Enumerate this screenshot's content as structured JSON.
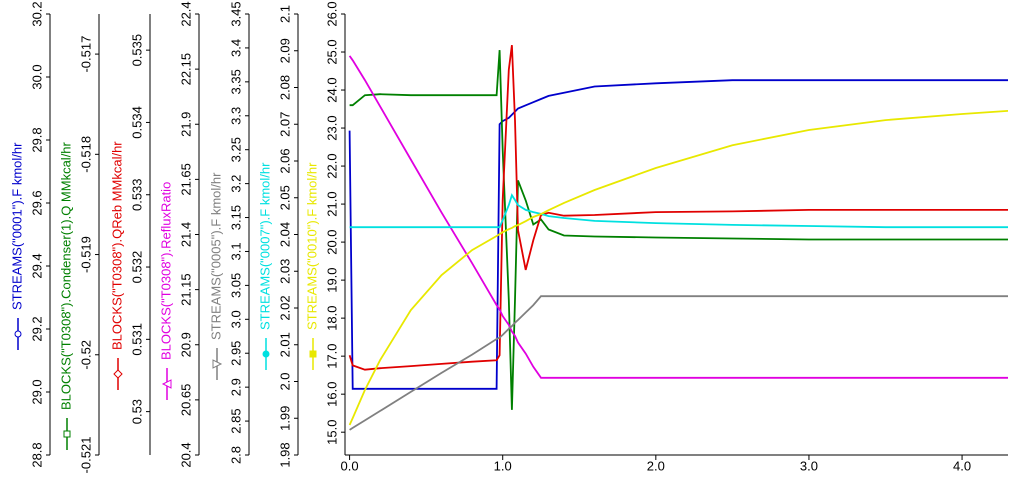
{
  "chart_data": {
    "type": "line",
    "x": [
      0,
      0.02,
      0.1,
      0.2,
      0.4,
      0.6,
      0.8,
      0.96,
      0.98,
      1.0,
      1.04,
      1.06,
      1.08,
      1.1,
      1.15,
      1.2,
      1.25,
      1.3,
      1.4,
      1.6,
      2.0,
      2.5,
      3.0,
      3.5,
      4.0,
      4.3
    ],
    "xlim": [
      -0.03,
      4.3
    ],
    "xticks": [
      {
        "value": 0,
        "label": "0.0"
      },
      {
        "value": 1,
        "label": "1.0"
      },
      {
        "value": 2,
        "label": "2.0"
      },
      {
        "value": 3,
        "label": "3.0"
      },
      {
        "value": 4,
        "label": "4.0"
      }
    ],
    "series": [
      {
        "name": "STREAMS(\"0001\").F kmol/hr",
        "color": "#0000cc",
        "marker": "circle-open",
        "ylim": [
          28.8,
          30.2
        ],
        "yticks": [
          28.8,
          {
            "value": 29,
            "label": "29.0"
          },
          29.2,
          29.4,
          29.6,
          29.8,
          {
            "value": 30,
            "label": "30.0"
          },
          30.2
        ],
        "values": [
          29.83,
          29.01,
          29.01,
          29.01,
          29.01,
          29.01,
          29.01,
          29.01,
          29.85,
          29.86,
          29.87,
          29.88,
          29.89,
          29.9,
          29.91,
          29.92,
          29.93,
          29.94,
          29.95,
          29.97,
          29.98,
          29.99,
          29.99,
          29.99,
          29.99,
          29.99
        ]
      },
      {
        "name": "BLOCKS(\"T0308\").Condenser(1).Q MMkcal/hr",
        "color": "#008000",
        "marker": "square-open",
        "ylim": [
          -0.521,
          -0.5166
        ],
        "yticks": [
          -0.521,
          -0.52,
          -0.519,
          -0.518,
          -0.517
        ],
        "values": [
          -0.51751,
          -0.51751,
          -0.51741,
          -0.5174,
          -0.51741,
          -0.51741,
          -0.51741,
          -0.51741,
          -0.51696,
          -0.51796,
          -0.51945,
          -0.52055,
          -0.51945,
          -0.51826,
          -0.51846,
          -0.5187,
          -0.51865,
          -0.51875,
          -0.51881,
          -0.51882,
          -0.51883,
          -0.51884,
          -0.51885,
          -0.51885,
          -0.51885,
          -0.51885
        ]
      },
      {
        "name": "BLOCKS(\"T0308\").QReb MMkcal/hr",
        "color": "#e00000",
        "marker": "diamond-open",
        "ylim": [
          0.5294,
          0.5355
        ],
        "yticks": [
          0.53,
          0.531,
          0.532,
          0.533,
          0.534,
          0.535
        ],
        "values": [
          0.53078,
          0.53064,
          0.53058,
          0.5306,
          0.53063,
          0.53066,
          0.53069,
          0.53071,
          0.53078,
          0.53293,
          0.53473,
          0.53507,
          0.53403,
          0.53251,
          0.53196,
          0.53237,
          0.53272,
          0.53275,
          0.53271,
          0.53272,
          0.53276,
          0.53277,
          0.53279,
          0.53279,
          0.53279,
          0.53279
        ]
      },
      {
        "name": "BLOCKS(\"T0308\").RefluxRatio",
        "color": "#e000e0",
        "marker": "triangle-open",
        "ylim": [
          20.4,
          22.4
        ],
        "yticks": [
          20.4,
          20.65,
          20.9,
          21.15,
          21.4,
          21.65,
          21.9,
          22.15,
          22.4
        ],
        "values": [
          22.21,
          22.19,
          22.1,
          21.98,
          21.74,
          21.5,
          21.27,
          21.08,
          21.06,
          21.03,
          20.99,
          20.96,
          20.94,
          20.91,
          20.86,
          20.8,
          20.75,
          20.75,
          20.75,
          20.75,
          20.75,
          20.75,
          20.75,
          20.75,
          20.75,
          20.75
        ]
      },
      {
        "name": "STREAMS(\"0005\").F kmol/hr",
        "color": "#808080",
        "marker": "triangle-down-open",
        "ylim": [
          2.8,
          3.45
        ],
        "yticks": [
          2.8,
          2.85,
          2.9,
          2.95,
          {
            "value": 3,
            "label": "3.0"
          },
          3.05,
          3.1,
          3.15,
          3.2,
          3.25,
          3.3,
          3.35,
          3.4,
          3.45
        ],
        "values": [
          2.837,
          2.84,
          2.851,
          2.865,
          2.893,
          2.921,
          2.948,
          2.971,
          2.973,
          2.977,
          2.986,
          2.99,
          2.995,
          2.999,
          3.01,
          3.021,
          3.034,
          3.034,
          3.034,
          3.034,
          3.034,
          3.034,
          3.034,
          3.034,
          3.034,
          3.034
        ]
      },
      {
        "name": "STREAMS(\"0007\").F kmol/hr",
        "color": "#00e0e0",
        "marker": "circle-filled",
        "ylim": [
          1.98,
          2.1
        ],
        "yticks": [
          1.98,
          1.99,
          {
            "value": 2,
            "label": "2.0"
          },
          2.01,
          2.02,
          2.03,
          2.04,
          2.05,
          2.06,
          2.07,
          2.08,
          2.09,
          2.1
        ],
        "values": [
          2.042,
          2.042,
          2.042,
          2.042,
          2.042,
          2.042,
          2.042,
          2.042,
          2.042,
          2.0439,
          2.048,
          2.0507,
          2.0494,
          2.048,
          2.0467,
          2.0461,
          2.0456,
          2.045,
          2.0445,
          2.0437,
          2.0431,
          2.0426,
          2.0423,
          2.042,
          2.042,
          2.042
        ]
      },
      {
        "name": "STREAMS(\"0010\").F kmol/hr",
        "color": "#e8e800",
        "marker": "square-filled",
        "ylim": [
          14.4,
          26.0
        ],
        "yticks": [
          {
            "value": 15,
            "label": "15.0"
          },
          {
            "value": 16,
            "label": "16.0"
          },
          {
            "value": 17,
            "label": "17.0"
          },
          {
            "value": 18,
            "label": "18.0"
          },
          {
            "value": 19,
            "label": "19.0"
          },
          {
            "value": 20,
            "label": "20.0"
          },
          {
            "value": 21,
            "label": "21.0"
          },
          {
            "value": 22,
            "label": "22.0"
          },
          {
            "value": 23,
            "label": "23.0"
          },
          {
            "value": 24,
            "label": "24.0"
          },
          {
            "value": 25,
            "label": "25.0"
          },
          {
            "value": 26,
            "label": "26.0"
          }
        ],
        "values": [
          15.19,
          15.37,
          16.11,
          16.9,
          18.21,
          19.13,
          19.79,
          20.16,
          20.21,
          20.26,
          20.34,
          20.37,
          20.42,
          20.45,
          20.55,
          20.66,
          20.74,
          20.84,
          21.03,
          21.37,
          21.95,
          22.55,
          22.95,
          23.21,
          23.37,
          23.45
        ]
      }
    ]
  }
}
